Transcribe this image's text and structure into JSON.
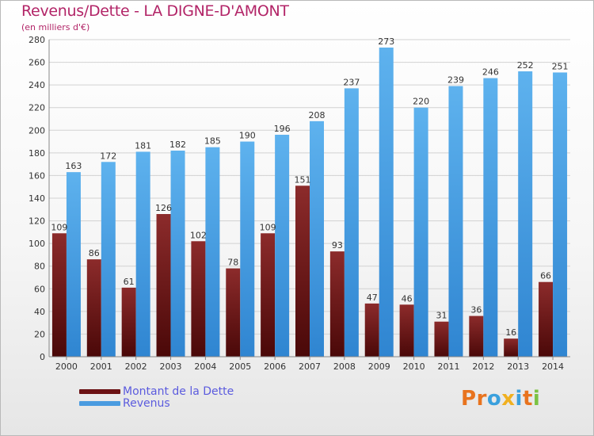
{
  "title": "Revenus/Dette - LA DIGNE-D'AMONT",
  "subtitle": "(en milliers d'€)",
  "legend": [
    {
      "label": "Montant de la Dette",
      "color": "#6b1113"
    },
    {
      "label": "Revenus",
      "color": "#4a9be0"
    }
  ],
  "logo": {
    "text": "Proxiti"
  },
  "colors": {
    "dette_top": "#8c2b2b",
    "dette_bottom": "#4a0808",
    "revenus_top": "#5eb2ee",
    "revenus_bottom": "#2f85d1",
    "label": "#333333",
    "grid": "#d2d2d2"
  },
  "chart_data": {
    "type": "bar",
    "categories": [
      "2000",
      "2001",
      "2002",
      "2003",
      "2004",
      "2005",
      "2006",
      "2007",
      "2008",
      "2009",
      "2010",
      "2011",
      "2012",
      "2013",
      "2014"
    ],
    "series": [
      {
        "name": "Montant de la Dette",
        "values": [
          109,
          86,
          61,
          126,
          102,
          78,
          109,
          151,
          93,
          47,
          46,
          31,
          36,
          16,
          66
        ]
      },
      {
        "name": "Revenus",
        "values": [
          163,
          172,
          181,
          182,
          185,
          190,
          196,
          208,
          237,
          273,
          220,
          239,
          246,
          252,
          251
        ]
      }
    ],
    "ylim": [
      0,
      280
    ],
    "yticks": [
      0,
      20,
      40,
      60,
      80,
      100,
      120,
      140,
      160,
      180,
      200,
      220,
      240,
      260,
      280
    ],
    "grid": true,
    "legend_position": "bottom-left"
  }
}
